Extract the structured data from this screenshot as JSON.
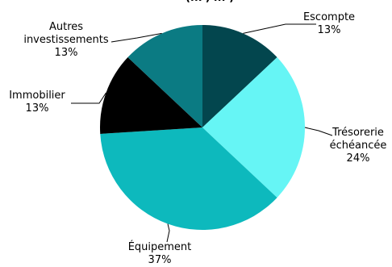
{
  "chart_data": {
    "type": "pie",
    "slices": [
      {
        "label_lines": [
          "Escompte"
        ],
        "value_label": "13%",
        "value": 13,
        "color": "#03464e"
      },
      {
        "label_lines": [
          "Trésorerie",
          "échéancée"
        ],
        "value_label": "24%",
        "value": 24,
        "color": "#66f5f5"
      },
      {
        "label_lines": [
          "Équipement"
        ],
        "value_label": "37%",
        "value": 37,
        "color": "#0db9bd"
      },
      {
        "label_lines": [
          "Immobilier"
        ],
        "value_label": "13%",
        "value": 13,
        "color": "#000000"
      },
      {
        "label_lines": [
          "Autres",
          "investissements"
        ],
        "value_label": "13%",
        "value": 13,
        "color": "#0b7b83"
      }
    ],
    "start_angle_deg": 0,
    "direction": "clockwise",
    "legend": "none",
    "title_partial": "(... , ... )"
  }
}
